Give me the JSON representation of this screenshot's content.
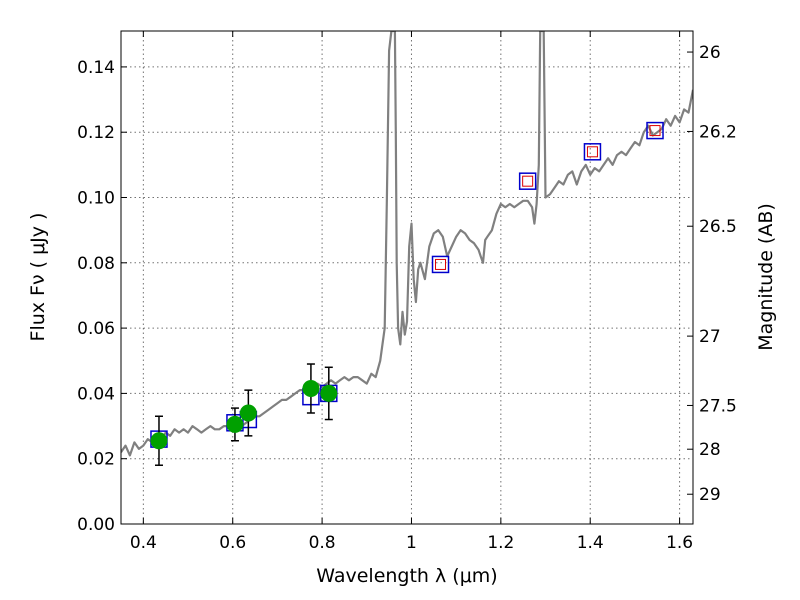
{
  "chart_data": {
    "type": "line",
    "xlabel": "Wavelength  λ (μm)",
    "ylabel": "Flux  Fν  ( μJy )",
    "y2label": "Magnitude (AB)",
    "xlim": [
      0.35,
      1.63
    ],
    "ylim": [
      0.0,
      0.151
    ],
    "grid": true,
    "x_ticks": [
      0.4,
      0.6,
      0.8,
      1.0,
      1.2,
      1.4,
      1.6
    ],
    "x_tick_labels": [
      "0.4",
      "0.6",
      "0.8",
      "1",
      "1.2",
      "1.4",
      "1.6"
    ],
    "y_ticks": [
      0.0,
      0.02,
      0.04,
      0.06,
      0.08,
      0.1,
      0.12,
      0.14
    ],
    "y_tick_labels": [
      "0.00",
      "0.02",
      "0.04",
      "0.06",
      "0.08",
      "0.10",
      "0.12",
      "0.14"
    ],
    "y2_ticks": [
      26,
      26.2,
      26.5,
      27,
      27.5,
      28,
      29
    ],
    "y2_tick_labels": [
      "26",
      "26.2",
      "26.5",
      "27",
      "27.5",
      "28",
      "29"
    ],
    "colors": {
      "spectrum": "#808080",
      "observed": "#00a000",
      "model_box": "#0000cc",
      "model_box_inner": "#dd0000"
    },
    "series": [
      {
        "kind": "spectrum",
        "x": [
          0.35,
          0.36,
          0.37,
          0.38,
          0.39,
          0.4,
          0.41,
          0.42,
          0.43,
          0.44,
          0.45,
          0.46,
          0.47,
          0.48,
          0.49,
          0.5,
          0.51,
          0.52,
          0.53,
          0.54,
          0.55,
          0.56,
          0.57,
          0.58,
          0.59,
          0.6,
          0.61,
          0.62,
          0.63,
          0.64,
          0.65,
          0.66,
          0.67,
          0.68,
          0.69,
          0.7,
          0.71,
          0.72,
          0.73,
          0.74,
          0.75,
          0.76,
          0.77,
          0.78,
          0.79,
          0.8,
          0.81,
          0.82,
          0.83,
          0.84,
          0.85,
          0.86,
          0.87,
          0.88,
          0.89,
          0.9,
          0.91,
          0.92,
          0.93,
          0.94,
          0.945,
          0.95,
          0.955,
          0.958,
          0.961,
          0.963,
          0.965,
          0.967,
          0.97,
          0.975,
          0.98,
          0.985,
          0.99,
          0.995,
          1.0,
          1.005,
          1.01,
          1.015,
          1.02,
          1.03,
          1.04,
          1.05,
          1.06,
          1.07,
          1.08,
          1.09,
          1.1,
          1.11,
          1.12,
          1.13,
          1.14,
          1.15,
          1.155,
          1.16,
          1.165,
          1.17,
          1.18,
          1.19,
          1.2,
          1.21,
          1.22,
          1.23,
          1.24,
          1.25,
          1.26,
          1.27,
          1.275,
          1.28,
          1.285,
          1.288,
          1.29,
          1.293,
          1.296,
          1.3,
          1.31,
          1.32,
          1.33,
          1.34,
          1.35,
          1.36,
          1.37,
          1.38,
          1.39,
          1.4,
          1.41,
          1.42,
          1.43,
          1.44,
          1.45,
          1.46,
          1.47,
          1.48,
          1.49,
          1.5,
          1.51,
          1.52,
          1.53,
          1.54,
          1.55,
          1.56,
          1.57,
          1.58,
          1.59,
          1.6,
          1.61,
          1.62,
          1.63
        ],
        "y": [
          0.022,
          0.024,
          0.021,
          0.025,
          0.023,
          0.024,
          0.026,
          0.025,
          0.027,
          0.026,
          0.028,
          0.027,
          0.029,
          0.028,
          0.029,
          0.028,
          0.03,
          0.029,
          0.028,
          0.029,
          0.03,
          0.029,
          0.029,
          0.03,
          0.03,
          0.029,
          0.031,
          0.03,
          0.031,
          0.032,
          0.033,
          0.033,
          0.034,
          0.035,
          0.036,
          0.037,
          0.038,
          0.038,
          0.039,
          0.04,
          0.041,
          0.041,
          0.042,
          0.042,
          0.043,
          0.042,
          0.043,
          0.044,
          0.043,
          0.044,
          0.045,
          0.044,
          0.045,
          0.045,
          0.044,
          0.043,
          0.046,
          0.045,
          0.05,
          0.06,
          0.1,
          0.145,
          0.151,
          0.151,
          0.151,
          0.151,
          0.12,
          0.08,
          0.06,
          0.055,
          0.065,
          0.058,
          0.062,
          0.085,
          0.092,
          0.075,
          0.068,
          0.078,
          0.08,
          0.075,
          0.085,
          0.089,
          0.09,
          0.088,
          0.082,
          0.085,
          0.088,
          0.09,
          0.089,
          0.087,
          0.086,
          0.084,
          0.082,
          0.08,
          0.087,
          0.088,
          0.09,
          0.095,
          0.098,
          0.097,
          0.098,
          0.097,
          0.098,
          0.099,
          0.099,
          0.097,
          0.092,
          0.098,
          0.11,
          0.151,
          0.151,
          0.151,
          0.151,
          0.1,
          0.101,
          0.103,
          0.105,
          0.104,
          0.107,
          0.108,
          0.104,
          0.108,
          0.11,
          0.107,
          0.109,
          0.108,
          0.11,
          0.112,
          0.11,
          0.113,
          0.114,
          0.113,
          0.115,
          0.117,
          0.116,
          0.12,
          0.122,
          0.119,
          0.12,
          0.121,
          0.124,
          0.122,
          0.125,
          0.123,
          0.127,
          0.126,
          0.133
        ]
      },
      {
        "kind": "observed_points",
        "x": [
          0.435,
          0.605,
          0.635,
          0.775,
          0.815
        ],
        "y": [
          0.0255,
          0.0305,
          0.034,
          0.0415,
          0.04
        ],
        "yerr": [
          0.0075,
          0.005,
          0.007,
          0.0075,
          0.008
        ]
      },
      {
        "kind": "model_boxes",
        "x": [
          0.435,
          0.605,
          0.635,
          0.775,
          0.815,
          1.065,
          1.26,
          1.405,
          1.545
        ],
        "y": [
          0.026,
          0.031,
          0.032,
          0.039,
          0.04,
          0.0795,
          0.105,
          0.114,
          0.1205
        ],
        "inner": [
          false,
          false,
          false,
          false,
          false,
          true,
          true,
          true,
          true
        ]
      }
    ]
  }
}
